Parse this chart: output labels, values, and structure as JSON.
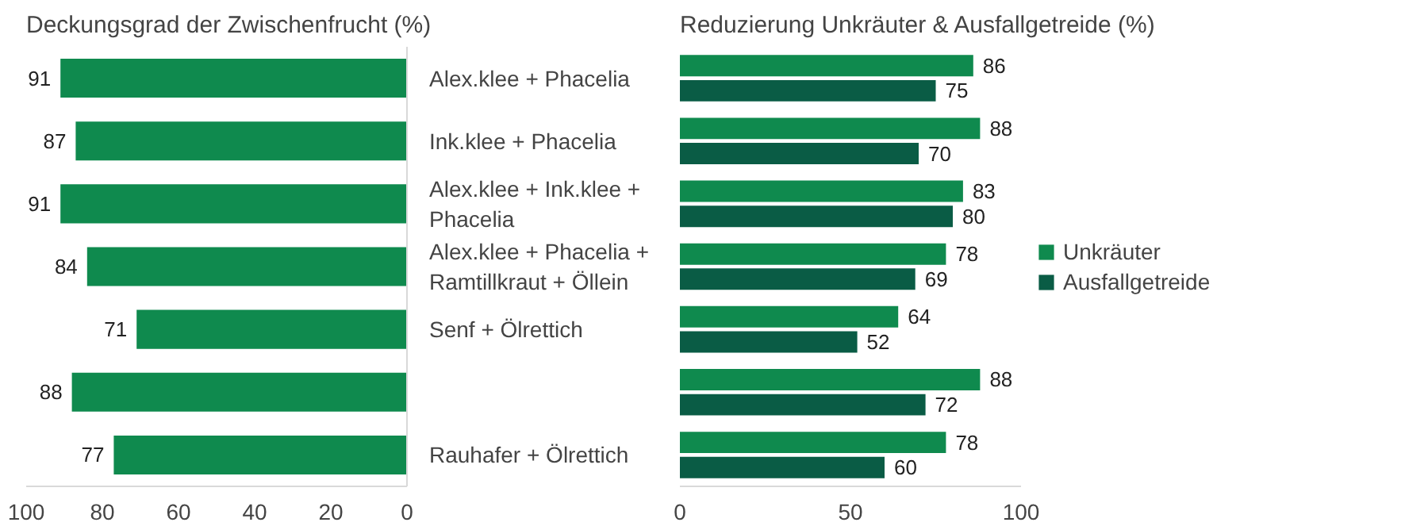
{
  "chart_data": [
    {
      "type": "bar",
      "orientation": "horizontal",
      "title": "Deckungsgrad der Zwischenfrucht (%)",
      "categories": [
        "Alex.klee + Phacelia",
        "Ink.klee + Phacelia",
        "Alex.klee + Ink.klee + Phacelia",
        "Alex.klee + Phacelia + Ramtillkraut + Öllein",
        "Senf + Ölrettich",
        null,
        "Rauhafer + Ölrettich"
      ],
      "series": [
        {
          "color": "#0f8a4e",
          "values": [
            91,
            87,
            91,
            84,
            71,
            88,
            77
          ]
        }
      ],
      "xlim": [
        100,
        0
      ],
      "xticks": [
        100,
        80,
        60,
        40,
        20,
        0
      ],
      "data_labels": true,
      "grid": false,
      "legend": false
    },
    {
      "type": "bar",
      "orientation": "horizontal",
      "title": "Reduzierung Unkräuter & Ausfallgetreide (%)",
      "categories": [
        "Alex.klee + Phacelia",
        "Ink.klee + Phacelia",
        "Alex.klee + Ink.klee + Phacelia",
        "Alex.klee + Phacelia + Ramtillkraut + Öllein",
        "Senf + Ölrettich",
        null,
        "Rauhafer + Ölrettich"
      ],
      "series": [
        {
          "name": "Unkräuter",
          "color": "#0f8a4e",
          "values": [
            86,
            88,
            83,
            78,
            64,
            88,
            78
          ]
        },
        {
          "name": "Ausfallgetreide",
          "color": "#0a5c45",
          "values": [
            75,
            70,
            80,
            69,
            52,
            72,
            60
          ]
        }
      ],
      "xlim": [
        0,
        100
      ],
      "xticks": [
        0,
        50,
        100
      ],
      "data_labels": true,
      "grid": false,
      "legend": "right",
      "tick_labels": "x"
    }
  ]
}
